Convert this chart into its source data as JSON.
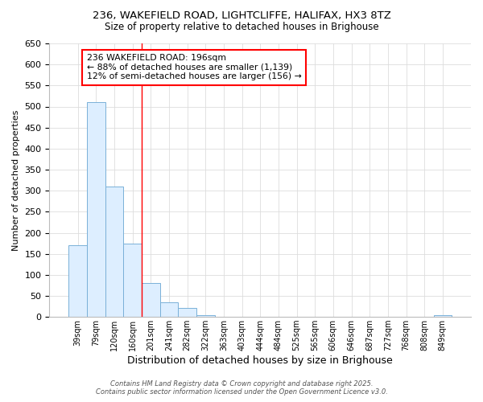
{
  "title_line1": "236, WAKEFIELD ROAD, LIGHTCLIFFE, HALIFAX, HX3 8TZ",
  "title_line2": "Size of property relative to detached houses in Brighouse",
  "xlabel": "Distribution of detached houses by size in Brighouse",
  "ylabel": "Number of detached properties",
  "bin_labels": [
    "39sqm",
    "79sqm",
    "120sqm",
    "160sqm",
    "201sqm",
    "241sqm",
    "282sqm",
    "322sqm",
    "363sqm",
    "403sqm",
    "444sqm",
    "484sqm",
    "525sqm",
    "565sqm",
    "606sqm",
    "646sqm",
    "687sqm",
    "727sqm",
    "768sqm",
    "808sqm",
    "849sqm"
  ],
  "bar_values": [
    170,
    510,
    310,
    175,
    80,
    35,
    22,
    5,
    0,
    0,
    0,
    0,
    0,
    0,
    0,
    0,
    0,
    0,
    0,
    0,
    5
  ],
  "bar_color": "#ddeeff",
  "bar_edge_color": "#7ab0d8",
  "red_line_index": 4,
  "annotation_line1": "236 WAKEFIELD ROAD: 196sqm",
  "annotation_line2": "← 88% of detached houses are smaller (1,139)",
  "annotation_line3": "12% of semi-detached houses are larger (156) →",
  "ylim": [
    0,
    650
  ],
  "yticks": [
    0,
    50,
    100,
    150,
    200,
    250,
    300,
    350,
    400,
    450,
    500,
    550,
    600,
    650
  ],
  "footer_line1": "Contains HM Land Registry data © Crown copyright and database right 2025.",
  "footer_line2": "Contains public sector information licensed under the Open Government Licence v3.0.",
  "bg_color": "#ffffff",
  "grid_color": "#dddddd"
}
